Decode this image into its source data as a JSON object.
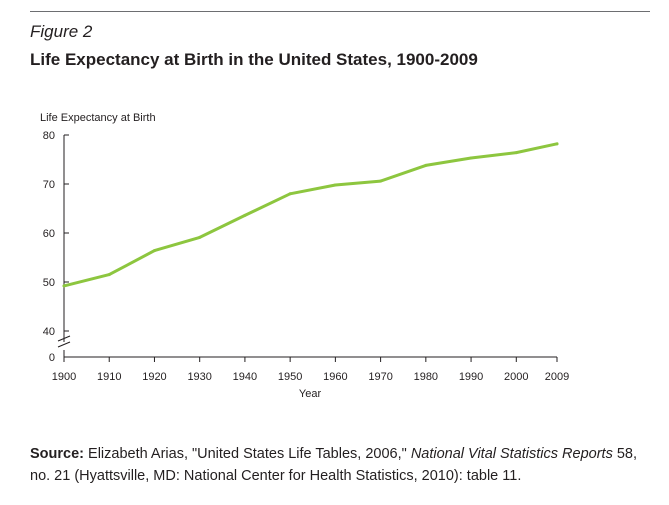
{
  "figure_label": "Figure 2",
  "figure_title": "Life Expectancy at Birth in the United States, 1900-2009",
  "chart_data": {
    "type": "line",
    "title": "Life Expectancy at Birth in the United States, 1900-2009",
    "ylabel": "Life Expectancy at Birth",
    "xlabel": "Year",
    "x": [
      1900,
      1910,
      1920,
      1930,
      1940,
      1950,
      1960,
      1970,
      1980,
      1990,
      2000,
      2009
    ],
    "values": [
      49.2,
      51.5,
      56.4,
      59.1,
      63.6,
      68.0,
      69.8,
      70.6,
      73.8,
      75.3,
      76.4,
      78.2
    ],
    "x_ticks": [
      "1900",
      "1910",
      "1920",
      "1930",
      "1940",
      "1950",
      "1960",
      "1970",
      "1980",
      "1990",
      "2000",
      "2009"
    ],
    "y_ticks": [
      "0",
      "40",
      "50",
      "60",
      "70",
      "80"
    ],
    "ylim": [
      40,
      80
    ],
    "y_axis_break": true,
    "grid": false,
    "line_color": "#8dc63f"
  },
  "source": {
    "label": "Source:",
    "text_a": " Elizabeth Arias, \"United States Life Tables, 2006,\" ",
    "publication": "National Vital Statistics Reports",
    "text_b": " 58, no. 21 (Hyattsville, MD: National Center for Health Statistics, 2010): table 11."
  }
}
